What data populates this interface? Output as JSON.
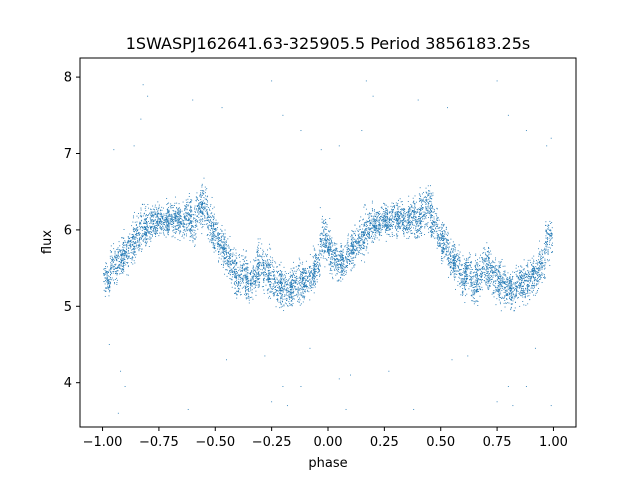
{
  "chart_data": {
    "type": "scatter",
    "title": "1SWASPJ162641.63-325905.5 Period 3856183.25s",
    "xlabel": "phase",
    "ylabel": "flux",
    "xlim": [
      -1.1,
      1.1
    ],
    "ylim": [
      3.42,
      8.25
    ],
    "x_ticks": [
      -1.0,
      -0.75,
      -0.5,
      -0.25,
      0.0,
      0.25,
      0.5,
      0.75,
      1.0
    ],
    "x_tick_labels": [
      "−1.00",
      "−0.75",
      "−0.50",
      "−0.25",
      "0.00",
      "0.25",
      "0.50",
      "0.75",
      "1.00"
    ],
    "y_ticks": [
      4,
      5,
      6,
      7,
      8
    ],
    "y_tick_labels": [
      "4",
      "5",
      "6",
      "7",
      "8"
    ],
    "grid": false,
    "legend": "none",
    "marker_color": "#1f77b4",
    "series": [
      {
        "note_profile": "dense band of small points; light curve repeats with period 1 in phase",
        "x": [
          -0.98,
          -0.95,
          -0.92,
          -0.9,
          -0.87,
          -0.85,
          -0.82,
          -0.8,
          -0.77,
          -0.75,
          -0.72,
          -0.7,
          -0.67,
          -0.65,
          -0.62,
          -0.6,
          -0.57,
          -0.55,
          -0.52,
          -0.5,
          -0.47,
          -0.45,
          -0.42,
          -0.4,
          -0.37,
          -0.35,
          -0.32,
          -0.3,
          -0.27,
          -0.25,
          -0.22,
          -0.2,
          -0.17,
          -0.15,
          -0.12,
          -0.1,
          -0.07,
          -0.05,
          -0.02,
          0.0,
          0.02,
          0.05,
          0.07,
          0.1,
          0.12,
          0.15,
          0.17,
          0.2,
          0.22,
          0.25,
          0.27,
          0.3,
          0.32,
          0.35,
          0.37,
          0.4,
          0.42,
          0.45,
          0.47,
          0.5,
          0.52,
          0.55,
          0.57,
          0.6,
          0.62,
          0.65,
          0.67,
          0.7,
          0.72,
          0.75,
          0.77,
          0.8,
          0.82,
          0.85,
          0.87,
          0.9,
          0.92,
          0.95,
          0.98
        ],
        "y": [
          5.35,
          5.55,
          5.6,
          5.7,
          5.8,
          5.9,
          6.0,
          6.05,
          6.1,
          6.15,
          6.1,
          6.15,
          6.15,
          6.1,
          6.2,
          6.1,
          6.25,
          6.3,
          6.1,
          5.9,
          5.8,
          5.65,
          5.55,
          5.35,
          5.45,
          5.3,
          5.4,
          5.55,
          5.45,
          5.35,
          5.3,
          5.25,
          5.2,
          5.3,
          5.3,
          5.35,
          5.4,
          5.55,
          5.9,
          5.8,
          5.65,
          5.55,
          5.6,
          5.7,
          5.8,
          5.9,
          6.0,
          6.05,
          6.1,
          6.15,
          6.1,
          6.15,
          6.15,
          6.1,
          6.2,
          6.1,
          6.25,
          6.3,
          6.1,
          5.9,
          5.8,
          5.65,
          5.55,
          5.35,
          5.45,
          5.3,
          5.4,
          5.55,
          5.45,
          5.35,
          5.3,
          5.25,
          5.2,
          5.3,
          5.3,
          5.35,
          5.4,
          5.55,
          5.9
        ],
        "spread": [
          0.25,
          0.3,
          0.3,
          0.3,
          0.3,
          0.35,
          0.35,
          0.3,
          0.25,
          0.25,
          0.25,
          0.3,
          0.25,
          0.25,
          0.3,
          0.35,
          0.35,
          0.35,
          0.3,
          0.3,
          0.3,
          0.3,
          0.3,
          0.3,
          0.35,
          0.35,
          0.35,
          0.35,
          0.35,
          0.35,
          0.35,
          0.3,
          0.3,
          0.3,
          0.35,
          0.3,
          0.3,
          0.3,
          0.35,
          0.3,
          0.3,
          0.3,
          0.3,
          0.3,
          0.3,
          0.35,
          0.35,
          0.3,
          0.25,
          0.25,
          0.25,
          0.3,
          0.25,
          0.25,
          0.3,
          0.35,
          0.35,
          0.35,
          0.3,
          0.3,
          0.3,
          0.3,
          0.3,
          0.3,
          0.35,
          0.35,
          0.35,
          0.35,
          0.35,
          0.35,
          0.35,
          0.3,
          0.3,
          0.3,
          0.35,
          0.3,
          0.3,
          0.3,
          0.35
        ]
      }
    ],
    "outliers": [
      {
        "x": -0.82,
        "y": 7.9
      },
      {
        "x": -0.8,
        "y": 7.75
      },
      {
        "x": -0.83,
        "y": 7.45
      },
      {
        "x": -0.86,
        "y": 7.1
      },
      {
        "x": -0.95,
        "y": 7.05
      },
      {
        "x": -0.6,
        "y": 7.7
      },
      {
        "x": -0.47,
        "y": 7.6
      },
      {
        "x": -0.25,
        "y": 7.95
      },
      {
        "x": -0.2,
        "y": 7.5
      },
      {
        "x": -0.12,
        "y": 7.3
      },
      {
        "x": -0.03,
        "y": 7.05
      },
      {
        "x": 0.05,
        "y": 7.1
      },
      {
        "x": 0.17,
        "y": 7.95
      },
      {
        "x": 0.2,
        "y": 7.75
      },
      {
        "x": 0.15,
        "y": 7.3
      },
      {
        "x": 0.4,
        "y": 7.7
      },
      {
        "x": 0.53,
        "y": 7.6
      },
      {
        "x": 0.75,
        "y": 7.95
      },
      {
        "x": 0.8,
        "y": 7.5
      },
      {
        "x": 0.88,
        "y": 7.3
      },
      {
        "x": 0.97,
        "y": 7.1
      },
      {
        "x": 0.99,
        "y": 7.2
      },
      {
        "x": -0.97,
        "y": 4.5
      },
      {
        "x": -0.92,
        "y": 4.15
      },
      {
        "x": -0.9,
        "y": 3.95
      },
      {
        "x": -0.93,
        "y": 3.6
      },
      {
        "x": -0.62,
        "y": 3.65
      },
      {
        "x": -0.45,
        "y": 4.3
      },
      {
        "x": -0.28,
        "y": 4.35
      },
      {
        "x": -0.25,
        "y": 3.75
      },
      {
        "x": -0.2,
        "y": 3.95
      },
      {
        "x": -0.18,
        "y": 3.7
      },
      {
        "x": -0.12,
        "y": 3.95
      },
      {
        "x": -0.08,
        "y": 4.45
      },
      {
        "x": 0.05,
        "y": 4.05
      },
      {
        "x": 0.08,
        "y": 3.65
      },
      {
        "x": 0.1,
        "y": 4.1
      },
      {
        "x": 0.27,
        "y": 4.15
      },
      {
        "x": 0.38,
        "y": 3.65
      },
      {
        "x": 0.55,
        "y": 4.3
      },
      {
        "x": 0.62,
        "y": 4.35
      },
      {
        "x": 0.75,
        "y": 3.75
      },
      {
        "x": 0.8,
        "y": 3.95
      },
      {
        "x": 0.82,
        "y": 3.7
      },
      {
        "x": 0.88,
        "y": 3.95
      },
      {
        "x": 0.92,
        "y": 4.45
      },
      {
        "x": 0.99,
        "y": 3.7
      }
    ]
  }
}
